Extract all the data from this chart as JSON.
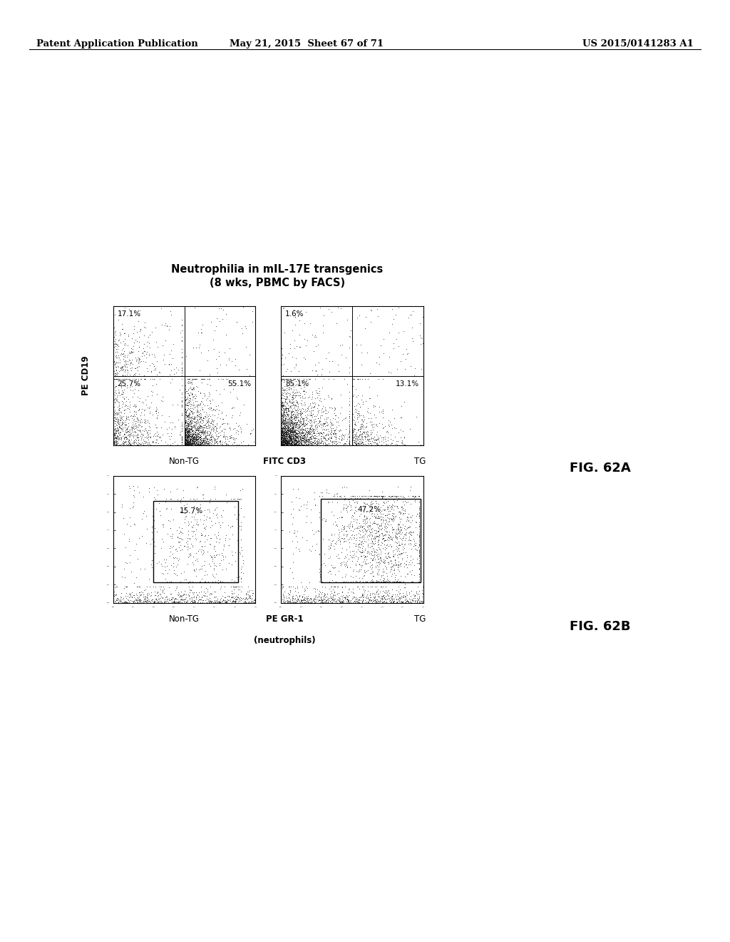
{
  "header_left": "Patent Application Publication",
  "header_mid": "May 21, 2015  Sheet 67 of 71",
  "header_right": "US 2015/0141283 A1",
  "title_line1": "Neutrophilia in mIL-17E transgenics",
  "title_line2": "(8 wks, PBMC by FACS)",
  "fig_a_label": "FIG. 62A",
  "fig_b_label": "FIG. 62B",
  "ylabel_a": "PE CD19",
  "xlabel_a": "FITC CD3",
  "nontg_label": "Non-TG",
  "tg_label": "TG",
  "quadrant_labels_nontg_ul": "17.1%",
  "quadrant_labels_nontg_ll": "25.7%",
  "quadrant_labels_nontg_lr": "55.1%",
  "quadrant_labels_tg_ul": "1.6%",
  "quadrant_labels_tg_ll": "85.1%",
  "quadrant_labels_tg_lr": "13.1%",
  "gate_label_nontg": "15.7%",
  "gate_label_tg": "47.2%",
  "bg_color": "#ffffff",
  "dot_color": "#111111",
  "header_fontsize": 9.5,
  "title_fontsize": 10.5,
  "axis_label_fontsize": 8.5,
  "quadrant_pct_fontsize": 7.5,
  "fig_label_fontsize": 13
}
